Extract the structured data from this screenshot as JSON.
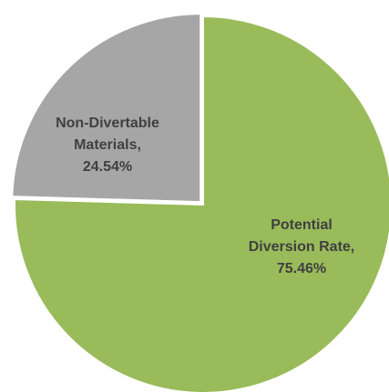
{
  "chart_data": {
    "type": "pie",
    "categories": [
      "Potential Diversion Rate",
      "Non-Divertable Materials"
    ],
    "values": [
      75.46,
      24.54
    ],
    "unit": "%",
    "colors": [
      "#99bb5a",
      "#a6a6a6"
    ],
    "labels": [
      [
        "Potential",
        "Diversion Rate,",
        "75.46%"
      ],
      [
        "Non-Divertable",
        "Materials,",
        "24.54%"
      ]
    ],
    "start_angle_deg": 0,
    "direction": "clockwise",
    "exploded_slice": "Non-Divertable Materials",
    "legend": "none"
  }
}
